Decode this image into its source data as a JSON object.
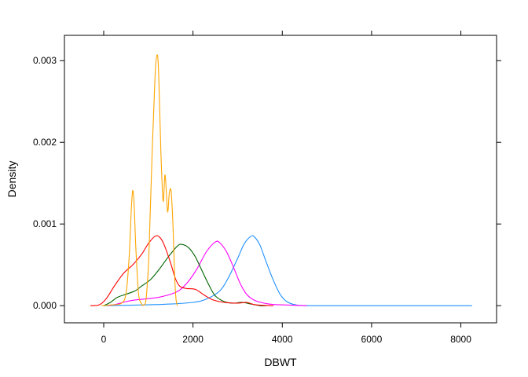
{
  "chart_data": {
    "type": "line",
    "title": "",
    "xlabel": "DBWT",
    "ylabel": "Density",
    "xlim": [
      -880,
      8800
    ],
    "ylim": [
      -0.00021,
      0.00331
    ],
    "x_ticks": [
      0,
      2000,
      4000,
      6000,
      8000
    ],
    "x_tick_labels": [
      "0",
      "2000",
      "4000",
      "6000",
      "8000"
    ],
    "y_ticks": [
      0.0,
      0.001,
      0.002,
      0.003
    ],
    "y_tick_labels": [
      "0.000",
      "0.001",
      "0.002",
      "0.003"
    ],
    "grid": false,
    "legend": "none",
    "series": [
      {
        "color": "#1e90ff",
        "points": [
          [
            0,
            0
          ],
          [
            1000,
            1e-05
          ],
          [
            1500,
            2e-05
          ],
          [
            2000,
            4e-05
          ],
          [
            2300,
            8e-05
          ],
          [
            2600,
            0.00018
          ],
          [
            2800,
            0.00035
          ],
          [
            3000,
            0.00058
          ],
          [
            3150,
            0.00076
          ],
          [
            3300,
            0.00085
          ],
          [
            3380,
            0.00084
          ],
          [
            3500,
            0.00074
          ],
          [
            3650,
            0.00052
          ],
          [
            3800,
            0.00031
          ],
          [
            3950,
            0.00014
          ],
          [
            4100,
            5e-05
          ],
          [
            4300,
            1e-05
          ],
          [
            4600,
            0
          ],
          [
            6000,
            0
          ],
          [
            8250,
            0
          ]
        ]
      },
      {
        "color": "#ff00ff",
        "points": [
          [
            100,
            0
          ],
          [
            300,
            2e-05
          ],
          [
            500,
            5e-05
          ],
          [
            700,
            7e-05
          ],
          [
            900,
            8e-05
          ],
          [
            1200,
            0.0001
          ],
          [
            1500,
            0.00014
          ],
          [
            1700,
            0.00019
          ],
          [
            1900,
            0.0003
          ],
          [
            2100,
            0.00046
          ],
          [
            2300,
            0.00066
          ],
          [
            2500,
            0.00078
          ],
          [
            2600,
            0.00077
          ],
          [
            2750,
            0.00066
          ],
          [
            2900,
            0.00048
          ],
          [
            3050,
            0.00028
          ],
          [
            3200,
            0.00014
          ],
          [
            3400,
            6e-05
          ],
          [
            3700,
            2e-05
          ],
          [
            4000,
            1e-05
          ],
          [
            4550,
            0
          ]
        ]
      },
      {
        "color": "#006400",
        "points": [
          [
            0,
            0
          ],
          [
            150,
            4e-05
          ],
          [
            300,
            0.0001
          ],
          [
            500,
            0.00014
          ],
          [
            700,
            0.00018
          ],
          [
            850,
            0.00024
          ],
          [
            1050,
            0.00032
          ],
          [
            1250,
            0.00045
          ],
          [
            1450,
            0.0006
          ],
          [
            1650,
            0.00073
          ],
          [
            1750,
            0.00075
          ],
          [
            1900,
            0.00071
          ],
          [
            2050,
            0.0006
          ],
          [
            2200,
            0.00043
          ],
          [
            2350,
            0.00026
          ],
          [
            2500,
            0.00012
          ],
          [
            2700,
            5e-05
          ],
          [
            2900,
            3e-05
          ],
          [
            3100,
            4e-05
          ],
          [
            3300,
            2e-05
          ],
          [
            3500,
            0
          ],
          [
            3650,
            0
          ]
        ]
      },
      {
        "color": "#ff0000",
        "points": [
          [
            -300,
            0
          ],
          [
            -100,
            1e-05
          ],
          [
            50,
            8e-05
          ],
          [
            250,
            0.00025
          ],
          [
            450,
            0.0004
          ],
          [
            650,
            0.0005
          ],
          [
            850,
            0.00063
          ],
          [
            1000,
            0.00076
          ],
          [
            1150,
            0.00085
          ],
          [
            1250,
            0.00084
          ],
          [
            1350,
            0.00075
          ],
          [
            1500,
            0.00052
          ],
          [
            1600,
            0.00034
          ],
          [
            1700,
            0.00024
          ],
          [
            1850,
            0.00021
          ],
          [
            2050,
            0.0002
          ],
          [
            2250,
            0.00013
          ],
          [
            2450,
            7e-05
          ],
          [
            2700,
            4e-05
          ],
          [
            3000,
            3e-05
          ],
          [
            3200,
            4e-05
          ],
          [
            3400,
            1e-05
          ],
          [
            3800,
            0
          ]
        ]
      },
      {
        "color": "#ffa500",
        "points": [
          [
            -50,
            0
          ],
          [
            200,
            1e-05
          ],
          [
            400,
            3e-05
          ],
          [
            500,
            0.00015
          ],
          [
            570,
            0.0006
          ],
          [
            620,
            0.0012
          ],
          [
            650,
            0.00141
          ],
          [
            680,
            0.00125
          ],
          [
            720,
            0.0007
          ],
          [
            780,
            0.00015
          ],
          [
            850,
            2e-05
          ],
          [
            900,
            1e-05
          ],
          [
            950,
            9e-05
          ],
          [
            1010,
            0.0006
          ],
          [
            1080,
            0.0018
          ],
          [
            1150,
            0.0028
          ],
          [
            1195,
            0.00307
          ],
          [
            1230,
            0.00285
          ],
          [
            1280,
            0.0019
          ],
          [
            1330,
            0.00128
          ],
          [
            1375,
            0.0016
          ],
          [
            1430,
            0.00115
          ],
          [
            1470,
            0.00138
          ],
          [
            1510,
            0.0014
          ],
          [
            1550,
            0.001
          ],
          [
            1590,
            0.00035
          ],
          [
            1620,
            8e-05
          ],
          [
            1650,
            0
          ]
        ]
      }
    ]
  }
}
